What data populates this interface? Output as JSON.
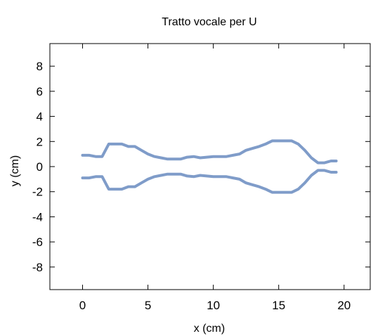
{
  "chart_data": {
    "type": "line",
    "title": "Tratto vocale per U",
    "xlabel": "x (cm)",
    "ylabel": "y (cm)",
    "xlim": [
      -2.5,
      22
    ],
    "ylim": [
      -9.8,
      9.8
    ],
    "xticks": [
      0,
      5,
      10,
      15,
      20
    ],
    "yticks": [
      -8,
      -6,
      -4,
      -2,
      0,
      2,
      4,
      6,
      8
    ],
    "grid": false,
    "legend": "none",
    "line_color": "#7f9cc9",
    "series": [
      {
        "x": [
          0,
          0.5,
          1.0,
          1.5,
          2.0,
          2.5,
          3.0,
          3.5,
          4.0,
          4.5,
          5.0,
          5.5,
          6.0,
          6.5,
          7.0,
          7.5,
          8.0,
          8.5,
          9.0,
          9.5,
          10.0,
          10.5,
          11.0,
          11.5,
          12.0,
          12.5,
          13.0,
          13.5,
          14.0,
          14.5,
          15.0,
          15.5,
          16.0,
          16.5,
          17.0,
          17.5,
          18.0,
          18.5,
          19.0,
          19.4
        ],
        "y": [
          0.9,
          0.9,
          0.8,
          0.8,
          1.8,
          1.8,
          1.8,
          1.6,
          1.6,
          1.3,
          1.0,
          0.8,
          0.7,
          0.6,
          0.6,
          0.6,
          0.75,
          0.8,
          0.7,
          0.75,
          0.8,
          0.8,
          0.8,
          0.9,
          1.0,
          1.3,
          1.45,
          1.6,
          1.8,
          2.05,
          2.05,
          2.05,
          2.05,
          1.8,
          1.3,
          0.7,
          0.3,
          0.3,
          0.45,
          0.45
        ]
      },
      {
        "x": [
          0,
          0.5,
          1.0,
          1.5,
          2.0,
          2.5,
          3.0,
          3.5,
          4.0,
          4.5,
          5.0,
          5.5,
          6.0,
          6.5,
          7.0,
          7.5,
          8.0,
          8.5,
          9.0,
          9.5,
          10.0,
          10.5,
          11.0,
          11.5,
          12.0,
          12.5,
          13.0,
          13.5,
          14.0,
          14.5,
          15.0,
          15.5,
          16.0,
          16.5,
          17.0,
          17.5,
          18.0,
          18.5,
          19.0,
          19.4
        ],
        "y": [
          -0.9,
          -0.9,
          -0.8,
          -0.8,
          -1.8,
          -1.8,
          -1.8,
          -1.6,
          -1.6,
          -1.3,
          -1.0,
          -0.8,
          -0.7,
          -0.6,
          -0.6,
          -0.6,
          -0.75,
          -0.8,
          -0.7,
          -0.75,
          -0.8,
          -0.8,
          -0.8,
          -0.9,
          -1.0,
          -1.3,
          -1.45,
          -1.6,
          -1.8,
          -2.05,
          -2.05,
          -2.05,
          -2.05,
          -1.8,
          -1.3,
          -0.7,
          -0.3,
          -0.3,
          -0.45,
          -0.45
        ]
      }
    ]
  }
}
